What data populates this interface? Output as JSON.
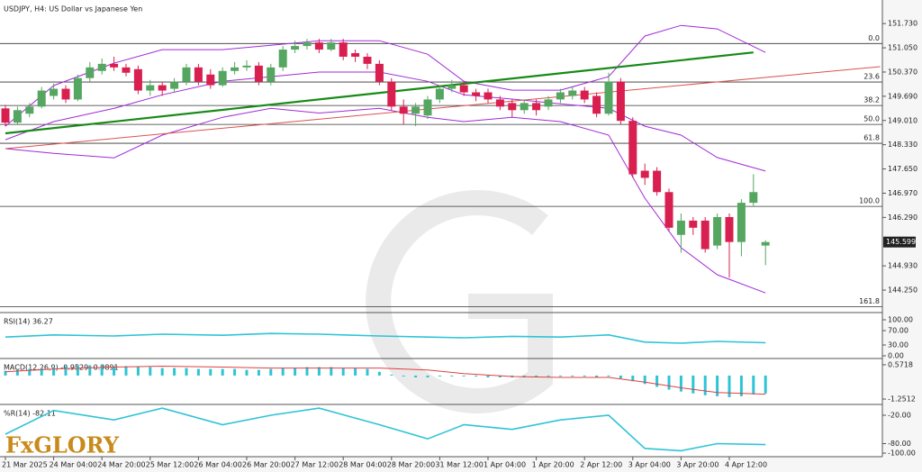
{
  "chart_data": {
    "type": "candlestick",
    "title": "USDJPY, H4:  US Dollar vs Japanese Yen",
    "logo": "FxGLORY",
    "categories": [
      "21 Mar 2025",
      null,
      null,
      null,
      "24 Mar 04:00",
      null,
      null,
      null,
      "24 Mar 20:00",
      null,
      null,
      null,
      "25 Mar 12:00",
      null,
      null,
      null,
      "26 Mar 04:00",
      null,
      null,
      null,
      "26 Mar 20:00",
      null,
      null,
      null,
      "27 Mar 12:00",
      null,
      null,
      null,
      "28 Mar 04:00",
      null,
      null,
      null,
      "28 Mar 20:00",
      null,
      null,
      null,
      "31 Mar 12:00",
      null,
      null,
      null,
      "1 Apr 04:00",
      null,
      null,
      null,
      "1 Apr 20:00",
      null,
      null,
      null,
      "2 Apr 12:00",
      null,
      null,
      null,
      "3 Apr 04:00",
      null,
      null,
      null,
      "3 Apr 20:00",
      null,
      null,
      null,
      "4 Apr 12:00",
      null,
      null,
      null
    ],
    "open": [
      149.35,
      148.95,
      149.2,
      149.4,
      149.7,
      149.9,
      149.6,
      150.2,
      150.4,
      150.6,
      150.5,
      150.45,
      149.85,
      150.0,
      149.9,
      150.1,
      150.5,
      150.3,
      150.0,
      150.4,
      150.5,
      150.55,
      150.1,
      150.5,
      151.0,
      151.1,
      151.2,
      151.0,
      151.2,
      150.9,
      150.8,
      150.6,
      150.1,
      149.4,
      149.2,
      149.15,
      149.6,
      149.9,
      150.0,
      149.8,
      149.8,
      149.6,
      149.5,
      149.3,
      149.5,
      149.4,
      149.6,
      149.7,
      149.85,
      149.7,
      149.2,
      150.1,
      149.0,
      147.6,
      147.6,
      147.0,
      145.8,
      146.2,
      146.2,
      145.5,
      146.3,
      145.6,
      146.7,
      145.5
    ],
    "high": [
      149.45,
      149.4,
      149.5,
      149.95,
      150.05,
      150.0,
      150.3,
      150.65,
      150.75,
      150.8,
      150.6,
      150.55,
      150.15,
      150.1,
      150.2,
      150.6,
      150.6,
      150.45,
      150.5,
      150.65,
      150.7,
      150.65,
      150.6,
      151.1,
      151.25,
      151.3,
      151.3,
      151.3,
      151.3,
      151.0,
      150.9,
      150.7,
      150.2,
      149.6,
      149.5,
      149.7,
      150.0,
      150.15,
      150.1,
      149.9,
      149.9,
      149.7,
      149.6,
      149.6,
      149.6,
      149.7,
      149.9,
      149.95,
      149.95,
      149.8,
      150.35,
      150.2,
      149.1,
      147.8,
      147.7,
      147.1,
      146.4,
      146.3,
      146.3,
      146.4,
      146.4,
      146.8,
      147.5,
      145.65
    ],
    "low": [
      148.85,
      148.9,
      149.1,
      149.35,
      149.6,
      149.5,
      149.55,
      150.1,
      150.3,
      150.4,
      150.25,
      149.75,
      149.7,
      149.7,
      149.8,
      150.0,
      150.0,
      149.9,
      149.95,
      150.3,
      150.4,
      150.0,
      150.0,
      150.4,
      150.9,
      151.0,
      150.9,
      150.95,
      150.7,
      150.65,
      150.45,
      150.0,
      149.3,
      148.9,
      148.85,
      149.05,
      149.5,
      149.8,
      149.7,
      149.55,
      149.5,
      149.3,
      149.1,
      149.2,
      149.15,
      149.3,
      149.5,
      149.6,
      149.5,
      149.1,
      149.15,
      148.9,
      147.4,
      147.2,
      146.9,
      145.9,
      145.3,
      145.8,
      145.3,
      145.4,
      144.6,
      145.2,
      146.6,
      144.95
    ],
    "close": [
      148.95,
      149.3,
      149.4,
      149.85,
      149.9,
      149.6,
      150.2,
      150.5,
      150.6,
      150.5,
      150.35,
      149.85,
      150.0,
      149.85,
      150.1,
      150.5,
      150.1,
      150.0,
      150.4,
      150.5,
      150.55,
      150.1,
      150.5,
      151.0,
      151.1,
      151.2,
      151.0,
      151.2,
      150.8,
      150.8,
      150.6,
      150.1,
      149.4,
      149.2,
      149.4,
      149.6,
      149.9,
      150.0,
      149.8,
      149.7,
      149.6,
      149.4,
      149.3,
      149.5,
      149.3,
      149.6,
      149.8,
      149.85,
      149.6,
      149.2,
      150.1,
      149.0,
      147.5,
      147.4,
      147.0,
      146.0,
      146.2,
      146.0,
      145.4,
      146.3,
      145.6,
      146.7,
      147.0,
      145.599
    ],
    "up_color": "#55a660",
    "down_color": "#d81f4f",
    "ylim": [
      143.67,
      152.24
    ],
    "yticks": [
      {
        "value": 151.73,
        "label": "151.730"
      },
      {
        "value": 151.05,
        "label": "151.050"
      },
      {
        "value": 150.37,
        "label": "150.370"
      },
      {
        "value": 149.69,
        "label": "149.690"
      },
      {
        "value": 149.01,
        "label": "149.010"
      },
      {
        "value": 148.33,
        "label": "148.330"
      },
      {
        "value": 147.65,
        "label": "147.650"
      },
      {
        "value": 146.97,
        "label": "146.970"
      },
      {
        "value": 146.29,
        "label": "146.290"
      },
      {
        "value": 144.93,
        "label": "144.930"
      },
      {
        "value": 144.25,
        "label": "144.250"
      }
    ],
    "last_price": {
      "value": 145.599,
      "label": "145.599"
    },
    "fib_levels": [
      {
        "value": 0,
        "label": "0.0",
        "price": 151.17
      },
      {
        "value": 23.6,
        "label": "23.6",
        "price": 150.09
      },
      {
        "value": 38.2,
        "label": "38.2",
        "price": 149.43
      },
      {
        "value": 50,
        "label": "50.0",
        "price": 148.9
      },
      {
        "value": 61.8,
        "label": "61.8",
        "price": 148.37
      },
      {
        "value": 100,
        "label": "100.0",
        "price": 146.6
      },
      {
        "value": 161.8,
        "label": "161.8",
        "price": 143.78
      }
    ],
    "bands": {
      "color": "#a12ad8",
      "x": [
        0,
        4,
        9,
        13,
        18,
        22,
        26,
        31,
        35,
        38,
        42,
        46,
        50,
        53,
        56,
        59,
        63
      ],
      "upper": [
        148.85,
        149.99,
        150.62,
        151.0,
        151.0,
        151.12,
        151.25,
        151.25,
        150.87,
        150.11,
        149.86,
        149.86,
        150.24,
        151.38,
        151.68,
        151.58,
        150.92
      ],
      "middle": [
        148.47,
        148.98,
        149.35,
        149.73,
        150.11,
        150.24,
        150.37,
        150.37,
        150.11,
        149.73,
        149.61,
        149.48,
        149.35,
        148.85,
        148.6,
        147.97,
        147.59
      ],
      "lower": [
        148.22,
        148.09,
        147.96,
        148.6,
        149.1,
        149.35,
        149.22,
        149.35,
        149.1,
        148.98,
        149.1,
        148.98,
        148.6,
        146.83,
        145.44,
        144.68,
        144.17
      ]
    },
    "trendlines": [
      {
        "color": "#178a17",
        "x": [
          0,
          62
        ],
        "y": [
          148.65,
          150.92
        ]
      },
      {
        "color": "#d9534f",
        "x": [
          0,
          72.5
        ],
        "y": [
          148.22,
          150.52
        ]
      }
    ],
    "rsi": {
      "title": "RSI(14) 36.27",
      "color": "#2ec4d6",
      "x": [
        0,
        4,
        9,
        13,
        18,
        22,
        26,
        31,
        35,
        38,
        42,
        46,
        50,
        53,
        56,
        59,
        63
      ],
      "values": [
        52,
        58,
        55,
        60,
        57,
        62,
        60,
        55,
        52,
        50,
        54,
        52,
        58,
        38,
        35,
        40,
        36.27
      ],
      "ylim": [
        -2.5,
        115
      ],
      "yticks": [
        {
          "value": 100,
          "label": "100.00"
        },
        {
          "value": 70,
          "label": "70.00"
        },
        {
          "value": 30,
          "label": "30.00"
        },
        {
          "value": 0,
          "label": "0.00"
        }
      ]
    },
    "macd": {
      "title": "MACD(12,26,9) -0.9529 -0.9891",
      "color": "#2ec4d6",
      "signal_color": "#e04040",
      "ylim": [
        -1.44,
        0.81
      ],
      "yticks": [
        0.5718,
        -1.2512
      ],
      "histogram": [
        0.25,
        0.3,
        0.35,
        0.4,
        0.45,
        0.5,
        0.55,
        0.55,
        0.55,
        0.5,
        0.5,
        0.45,
        0.45,
        0.4,
        0.4,
        0.4,
        0.35,
        0.35,
        0.35,
        0.35,
        0.3,
        0.3,
        0.35,
        0.4,
        0.4,
        0.45,
        0.45,
        0.45,
        0.4,
        0.4,
        0.35,
        0.2,
        0.05,
        -0.05,
        -0.1,
        -0.1,
        -0.05,
        0,
        0,
        -0.05,
        -0.1,
        -0.1,
        -0.1,
        -0.1,
        -0.1,
        -0.05,
        -0.05,
        -0.05,
        -0.05,
        -0.1,
        -0.05,
        -0.15,
        -0.3,
        -0.45,
        -0.6,
        -0.75,
        -0.85,
        -0.95,
        -1.05,
        -1.1,
        -1.15,
        -1.1,
        -1.0,
        -0.9529
      ],
      "signal": {
        "x": [
          0,
          4,
          9,
          13,
          18,
          22,
          26,
          31,
          35,
          38,
          42,
          46,
          50,
          53,
          56,
          59,
          63
        ],
        "values": [
          0.2,
          0.35,
          0.45,
          0.5,
          0.45,
          0.4,
          0.4,
          0.4,
          0.3,
          0.1,
          -0.05,
          -0.1,
          -0.1,
          -0.35,
          -0.65,
          -0.9,
          -0.9891
        ]
      }
    },
    "wpr": {
      "title": "%R(14) -82.11",
      "color": "#2ec4d6",
      "x": [
        0,
        4,
        9,
        13,
        18,
        22,
        26,
        31,
        35,
        38,
        42,
        46,
        50,
        53,
        56,
        59,
        63
      ],
      "values": [
        -60,
        -10,
        -30,
        -5,
        -40,
        -20,
        -5,
        -40,
        -70,
        -40,
        -50,
        -30,
        -20,
        -90,
        -95,
        -80,
        -82.11
      ],
      "ylim": [
        -105.7,
        -1
      ],
      "yticks": [
        {
          "value": -20,
          "label": "-20.00"
        },
        {
          "value": -80,
          "label": "-80.00"
        },
        {
          "value": -100,
          "label": "-100.00"
        }
      ]
    }
  }
}
